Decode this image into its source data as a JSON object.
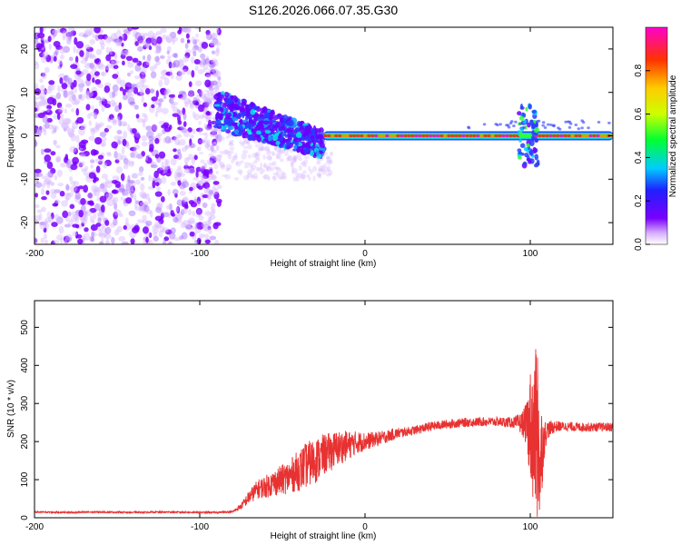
{
  "figure": {
    "title": "S126.2026.066.07.35.G30"
  },
  "chart_data": [
    {
      "type": "heatmap",
      "name": "spectrogram",
      "xlabel": "Height of straight line (km)",
      "ylabel": "Frequency (Hz)",
      "xlim": [
        -200,
        150
      ],
      "ylim": [
        -25,
        25
      ],
      "xticks": [
        -200,
        -100,
        0,
        100
      ],
      "yticks": [
        -20,
        -10,
        0,
        10,
        20
      ],
      "colorbar": {
        "label": "Normalized spectral amplitude",
        "range": [
          0,
          1
        ],
        "ticks": [
          0.0,
          0.2,
          0.4,
          0.6,
          0.8
        ],
        "tick_labels": [
          "0.0",
          "0.2",
          "0.4",
          "0.6",
          "0.8"
        ]
      },
      "regions": [
        {
          "x_range": [
            -200,
            -90
          ],
          "freq_range": [
            -25,
            25
          ],
          "amplitude": "0.0-0.1",
          "description": "scattered noise"
        },
        {
          "x_range": [
            -90,
            -25
          ],
          "freq_range": [
            -6,
            8
          ],
          "amplitude": "0.1-0.4",
          "description": "clustered energy near carrier"
        },
        {
          "x_range": [
            -25,
            150
          ],
          "freq_range": [
            -1,
            1
          ],
          "amplitude": "0.9-1.0",
          "description": "strong carrier line at 0 Hz"
        },
        {
          "x_range": [
            95,
            104
          ],
          "freq_range": [
            -8,
            8
          ],
          "amplitude": "0.2-0.5",
          "description": "disturbance"
        }
      ]
    },
    {
      "type": "line",
      "name": "snr",
      "xlabel": "Height of straight line (km)",
      "ylabel": "SNR (10 * v/v)",
      "xlim": [
        -200,
        150
      ],
      "ylim": [
        0,
        570
      ],
      "xticks": [
        -200,
        -100,
        0,
        100
      ],
      "yticks": [
        0,
        100,
        200,
        300,
        400,
        500
      ],
      "color": "#e83232",
      "x": [
        -200,
        -180,
        -160,
        -140,
        -120,
        -100,
        -90,
        -80,
        -75,
        -70,
        -65,
        -60,
        -55,
        -50,
        -45,
        -40,
        -35,
        -30,
        -25,
        -20,
        -15,
        -10,
        -5,
        0,
        5,
        10,
        15,
        20,
        25,
        30,
        40,
        50,
        60,
        70,
        80,
        90,
        95,
        98,
        100,
        102,
        104,
        106,
        108,
        110,
        115,
        120,
        130,
        140,
        150
      ],
      "y": [
        15,
        14,
        15,
        14,
        15,
        14,
        14,
        16,
        30,
        55,
        75,
        82,
        92,
        100,
        110,
        125,
        140,
        150,
        165,
        175,
        185,
        190,
        198,
        200,
        205,
        210,
        216,
        222,
        226,
        230,
        240,
        246,
        250,
        252,
        252,
        250,
        248,
        245,
        240,
        230,
        200,
        150,
        200,
        230,
        240,
        240,
        238,
        238,
        238
      ],
      "noise": [
        2,
        2,
        2,
        2,
        2,
        2,
        2,
        3,
        8,
        18,
        25,
        30,
        35,
        40,
        45,
        55,
        60,
        60,
        55,
        50,
        45,
        38,
        30,
        25,
        20,
        18,
        16,
        14,
        12,
        12,
        12,
        12,
        12,
        12,
        12,
        15,
        30,
        60,
        150,
        200,
        250,
        180,
        60,
        25,
        15,
        12,
        12,
        12,
        12
      ]
    }
  ]
}
